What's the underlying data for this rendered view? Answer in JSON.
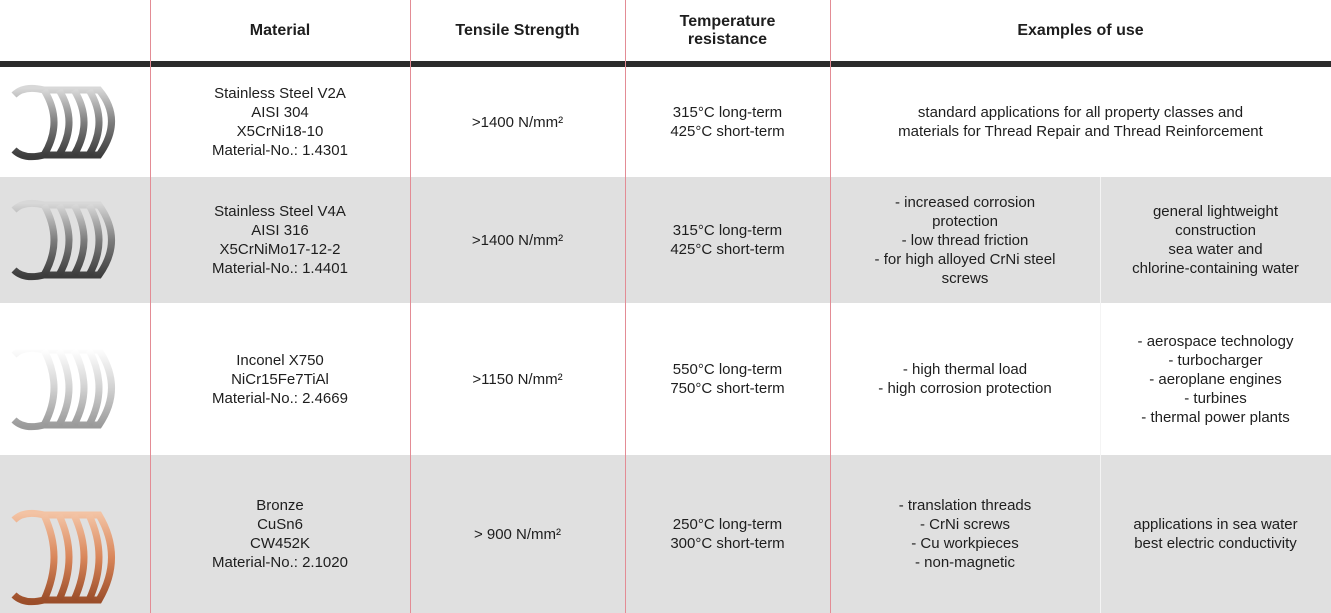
{
  "table": {
    "header": [
      "Material",
      "Tensile Strength",
      [
        "Temperature",
        "resistance"
      ],
      "Examples of use"
    ],
    "rows": [
      {
        "material": [
          "Stainless Steel V2A",
          "AISI 304",
          "X5CrNi18-10",
          "Material-No.: 1.4301"
        ],
        "tensile": ">1400 N/mm²",
        "temperature": [
          "315°C long-term",
          "425°C short-term"
        ],
        "examples": [
          [
            "standard applications for all property classes and",
            "materials for Thread Repair and Thread Reinforcement"
          ]
        ]
      },
      {
        "material": [
          "Stainless Steel V4A",
          "AISI 316",
          "X5CrNiMo17-12-2",
          "Material-No.: 1.4401"
        ],
        "tensile": ">1400 N/mm²",
        "temperature": [
          "315°C long-term",
          "425°C short-term"
        ],
        "examples": [
          [
            "- increased corrosion",
            "protection",
            "- low thread friction",
            "- for high alloyed CrNi steel",
            "screws"
          ],
          [
            "general lightweight",
            "construction",
            "sea water and",
            "chlorine-containing water"
          ]
        ]
      },
      {
        "material": [
          "Inconel X750",
          "NiCr15Fe7TiAl",
          "Material-No.: 2.4669"
        ],
        "tensile": ">1150 N/mm²",
        "temperature": [
          "550°C long-term",
          "750°C short-term"
        ],
        "examples": [
          [
            "- high thermal load",
            "- high corrosion protection"
          ],
          [
            "- aerospace technology",
            "- turbocharger",
            "- aeroplane engines",
            "- turbines",
            "- thermal power plants"
          ]
        ]
      },
      {
        "material": [
          "Bronze",
          "CuSn6",
          "CW452K",
          "Material-No.: 2.1020"
        ],
        "tensile": "> 900 N/mm²",
        "temperature": [
          "250°C long-term",
          "300°C short-term"
        ],
        "examples": [
          [
            "- translation threads",
            "- CrNi screws",
            "- Cu workpieces",
            "- non-magnetic"
          ],
          [
            "applications in sea water",
            "best electric conductivity"
          ]
        ]
      }
    ]
  }
}
